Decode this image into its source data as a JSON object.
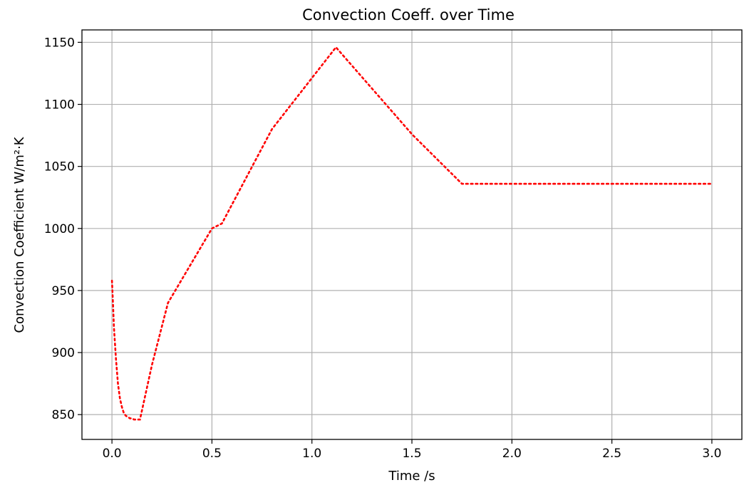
{
  "chart_data": {
    "type": "line",
    "title": "Convection Coeff. over Time",
    "xlabel": "Time /s",
    "ylabel": "Convection Coefficient W/m²·K",
    "xlim": [
      -0.15,
      3.15
    ],
    "ylim": [
      830,
      1160
    ],
    "x_ticks": [
      0.0,
      0.5,
      1.0,
      1.5,
      2.0,
      2.5,
      3.0
    ],
    "x_tick_labels": [
      "0.0",
      "0.5",
      "1.0",
      "1.5",
      "2.0",
      "2.5",
      "3.0"
    ],
    "y_ticks": [
      850,
      900,
      950,
      1000,
      1050,
      1100,
      1150
    ],
    "y_tick_labels": [
      "850",
      "900",
      "950",
      "1000",
      "1050",
      "1100",
      "1150"
    ],
    "grid": true,
    "series": [
      {
        "color": "#ff0000",
        "line_style": "dotted",
        "x": [
          0.0,
          0.005,
          0.01,
          0.02,
          0.03,
          0.04,
          0.05,
          0.06,
          0.07,
          0.08,
          0.09,
          0.1,
          0.11,
          0.12,
          0.13,
          0.14,
          0.2,
          0.28,
          0.5,
          0.55,
          0.8,
          1.12,
          1.5,
          1.75,
          2.0,
          2.5,
          3.0
        ],
        "y": [
          958,
          940,
          920,
          895,
          875,
          863,
          856,
          851,
          849,
          848,
          847,
          847,
          846,
          846,
          846,
          846,
          890,
          940,
          1000,
          1004,
          1080,
          1146,
          1076,
          1036,
          1036,
          1036,
          1036
        ]
      }
    ]
  }
}
